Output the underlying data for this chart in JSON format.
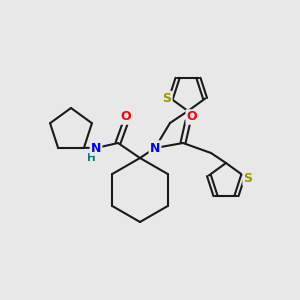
{
  "bg_color": "#e8e8e8",
  "bond_color": "#1a1a1a",
  "bond_width": 1.5,
  "atom_colors": {
    "N": "#0000ff",
    "O": "#ff0000",
    "S": "#999900",
    "H": "#008080"
  },
  "font_size": 9,
  "font_size_small": 7.5
}
